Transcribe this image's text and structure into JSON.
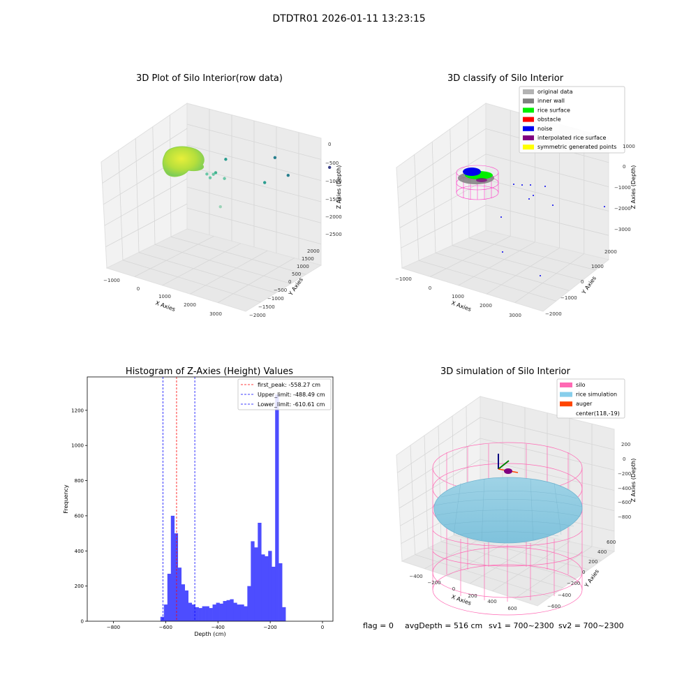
{
  "figure": {
    "suptitle": "DTDTR01 2026-01-11 13:23:15",
    "footer": {
      "flag": "flag = 0",
      "avg_depth": "avgDepth = 516 cm",
      "sv1": "sv1 = 700~2300",
      "sv2": "sv2 = 700~2300"
    }
  },
  "chart_data": [
    {
      "type": "scatter",
      "projection": "3d",
      "title": "3D Plot of Silo Interior(row data)",
      "xlabel": "X Axies",
      "ylabel": "Y Axies",
      "zlabel": "Z Axies (Depth)",
      "xticks": [
        "−1000",
        "0",
        "1000",
        "2000",
        "3000"
      ],
      "yticks": [
        "−2000",
        "−1500",
        "−1000",
        "−500",
        "0",
        "500",
        "1000",
        "1500",
        "2000"
      ],
      "zticks": [
        "−2500",
        "−2000",
        "−1500",
        "−1000",
        "−500",
        "0"
      ],
      "grid": true,
      "points_x_y_z": [
        [
          -900,
          200,
          -1200
        ],
        [
          -100,
          -200,
          -300
        ],
        [
          200,
          600,
          -900
        ],
        [
          400,
          700,
          -800
        ],
        [
          500,
          300,
          -1000
        ],
        [
          350,
          450,
          -1050
        ],
        [
          600,
          800,
          -900
        ],
        [
          1100,
          900,
          -1400
        ],
        [
          800,
          -800,
          -1500
        ],
        [
          1200,
          -1200,
          -2000
        ],
        [
          2100,
          -1700,
          -2700
        ],
        [
          3000,
          1200,
          -1800
        ]
      ],
      "cluster": {
        "x_range": [
          -400,
          400
        ],
        "y_range": [
          -400,
          400
        ],
        "z_range": [
          -600,
          -400
        ],
        "color": "#c4e235"
      }
    },
    {
      "type": "scatter",
      "projection": "3d",
      "title": "3D classify of Silo Interior",
      "xlabel": "X Axies",
      "ylabel": "Y Axies",
      "zlabel": "Z Axies (Depth)",
      "xticks": [
        "−1000",
        "0",
        "1000",
        "2000",
        "3000"
      ],
      "yticks": [
        "−2000",
        "−1000",
        "0",
        "1000",
        "2000"
      ],
      "zticks": [
        "−3000",
        "−2000",
        "−1000",
        "0",
        "1000"
      ],
      "grid": true,
      "legend": {
        "placement": "top-right",
        "entries": [
          {
            "label": "original data",
            "color": "#b3b3b3"
          },
          {
            "label": "inner wall",
            "color": "#808080"
          },
          {
            "label": "rice surface",
            "color": "#00ee00"
          },
          {
            "label": "obstacle",
            "color": "#ff0000"
          },
          {
            "label": "noise",
            "color": "#0000ee"
          },
          {
            "label": "interpolated rice surface",
            "color": "#800080"
          },
          {
            "label": "symmetric generated points",
            "color": "#ffff00"
          }
        ]
      }
    },
    {
      "type": "bar",
      "title": "Histogram of Z-Axies (Height) Values",
      "xlabel": "Depth (cm)",
      "ylabel": "Frequency",
      "xlim": [
        -900,
        40
      ],
      "ylim": [
        0,
        1390
      ],
      "xticks": [
        -800,
        -600,
        -400,
        -200,
        0
      ],
      "yticks": [
        0,
        200,
        400,
        600,
        800,
        1000,
        1200
      ],
      "bar_color": "#4d4dff",
      "bin_start": -620,
      "bin_width": 13.3,
      "values": [
        25,
        95,
        270,
        600,
        500,
        305,
        210,
        175,
        105,
        95,
        80,
        75,
        85,
        85,
        75,
        95,
        105,
        100,
        115,
        120,
        125,
        105,
        95,
        95,
        85,
        200,
        455,
        420,
        560,
        380,
        370,
        400,
        310,
        1290,
        330,
        80
      ],
      "lines": [
        {
          "label": "first_peak: -558.27 cm",
          "x": -558.27,
          "color": "#ff0000"
        },
        {
          "label": "Upper_limit: -488.49 cm",
          "x": -488.49,
          "color": "#0000ff"
        },
        {
          "label": "Lower_limit: -610.61 cm",
          "x": -610.61,
          "color": "#0000ff"
        }
      ],
      "legend": {
        "placement": "top-right"
      }
    },
    {
      "type": "surface",
      "projection": "3d",
      "title": "3D simulation of Silo Interior",
      "xlabel": "X Axies",
      "ylabel": "Y Axies",
      "zlabel": "Z Axies (Depth)",
      "xticks": [
        "−400",
        "−200",
        "0",
        "200",
        "400",
        "600"
      ],
      "yticks": [
        "−600",
        "−400",
        "−200",
        "0",
        "200",
        "400",
        "600"
      ],
      "zticks": [
        "−800",
        "−600",
        "−400",
        "−200",
        "0",
        "200"
      ],
      "grid": true,
      "legend": {
        "placement": "top-right",
        "entries": [
          {
            "label": "silo",
            "color": "#ff69b4"
          },
          {
            "label": "rice simulation",
            "color": "#87ceeb"
          },
          {
            "label": "auger",
            "color": "#ff4500"
          },
          {
            "label": "center(118,-19)",
            "color": ""
          }
        ]
      }
    }
  ]
}
